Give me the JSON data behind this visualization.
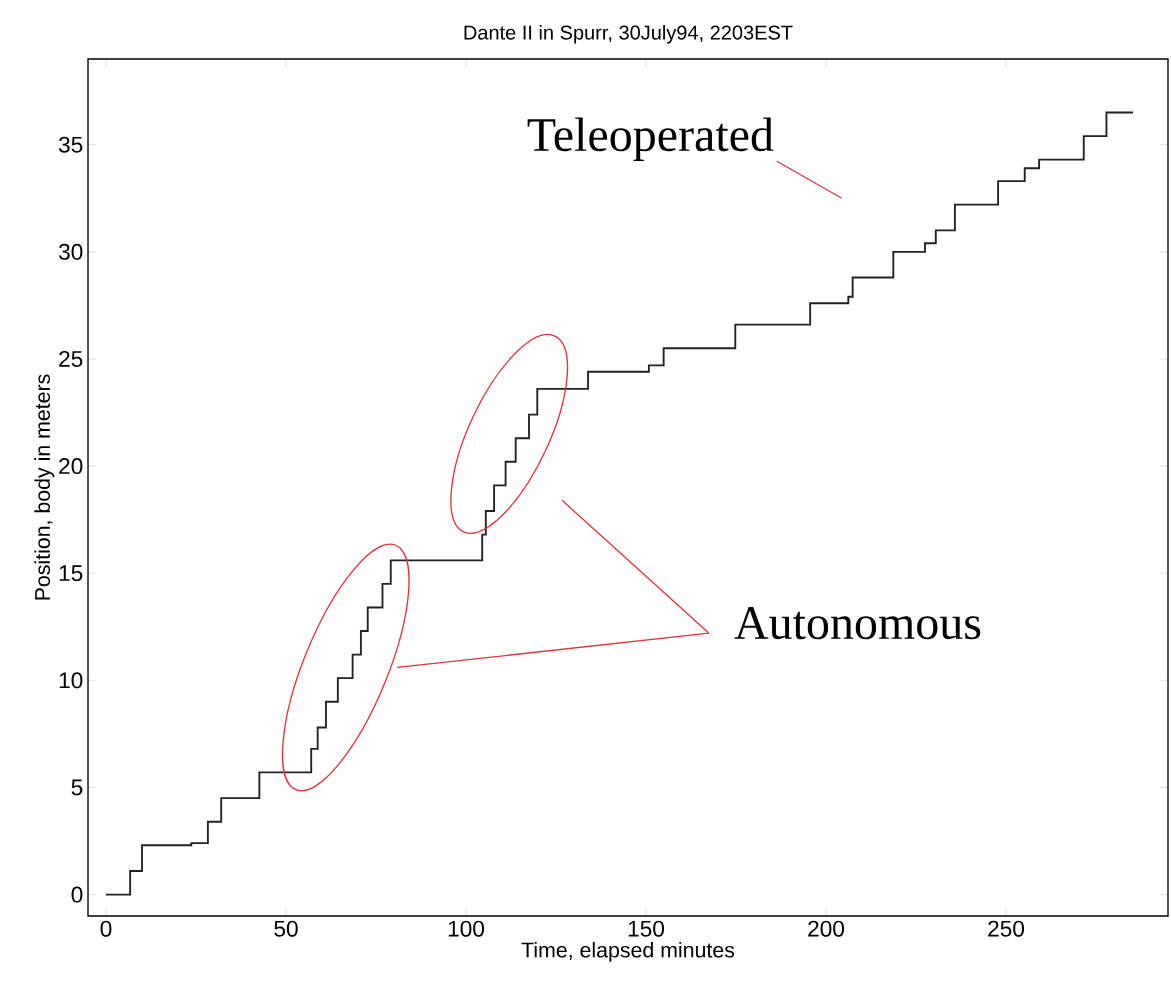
{
  "chart_data": {
    "type": "step",
    "title": "Dante II in Spurr, 30July94, 2203EST",
    "xlabel": "Time, elapsed minutes",
    "ylabel": "Position, body in meters",
    "x": [
      0,
      6.7,
      10,
      23.7,
      28.3,
      32,
      42.6,
      57,
      58.8,
      61.1,
      64.4,
      68.5,
      70.8,
      72.7,
      76.8,
      79.1,
      104.5,
      105.5,
      107.8,
      111,
      113.8,
      117.5,
      119.8,
      133.9,
      150.8,
      154.9,
      174.8,
      195.6,
      206.2,
      207.4,
      218.7,
      227.5,
      230.5,
      235.8,
      247.8,
      255.2,
      259.2,
      271.6,
      277.9,
      285.3
    ],
    "values": [
      0,
      1.1,
      2.3,
      2.4,
      3.4,
      4.5,
      5.7,
      6.8,
      7.8,
      9.0,
      10.1,
      11.2,
      12.3,
      13.4,
      14.5,
      15.6,
      16.8,
      17.9,
      19.1,
      20.2,
      21.3,
      22.4,
      23.6,
      24.4,
      24.7,
      25.5,
      26.6,
      27.6,
      27.9,
      28.8,
      30.0,
      30.4,
      31.0,
      32.2,
      33.3,
      33.9,
      34.3,
      35.4,
      36.5,
      36.5
    ],
    "color": "#222222",
    "xlim": [
      -5,
      295
    ],
    "ylim": [
      -1,
      39
    ],
    "xticks": [
      0,
      50,
      100,
      150,
      200,
      250
    ],
    "yticks": [
      0,
      5,
      10,
      15,
      20,
      25,
      30,
      35
    ],
    "annotations": [
      "Teleoperated",
      "Autonomous"
    ]
  }
}
